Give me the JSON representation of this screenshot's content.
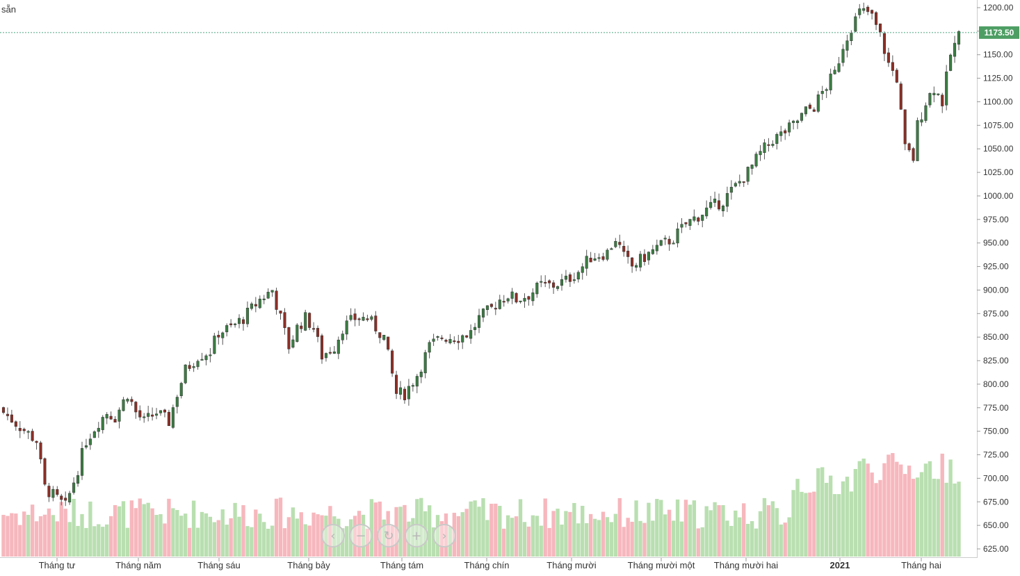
{
  "header": {
    "label": "sẵn"
  },
  "price_tag": "1173.50",
  "colors": {
    "up_body": "#3b7d43",
    "down_body": "#8c2f26",
    "up_volume": "#b9dfb0",
    "down_volume": "#f6b7bd",
    "current_price_line": "#4aa37d",
    "axis": "#999999",
    "text": "#333333"
  },
  "nav": [
    {
      "icon": "chevron-left-icon",
      "glyph": "‹"
    },
    {
      "icon": "minus-icon",
      "glyph": "−"
    },
    {
      "icon": "reset-icon",
      "glyph": "↻"
    },
    {
      "icon": "plus-icon",
      "glyph": "+"
    },
    {
      "icon": "chevron-right-icon",
      "glyph": "›"
    }
  ],
  "chart_data": {
    "type": "candlestick",
    "title": "",
    "x_ticks": [
      "Tháng tư",
      "Tháng năm",
      "Tháng sáu",
      "Tháng bảy",
      "Tháng tám",
      "Tháng chín",
      "Tháng mười",
      "Tháng mười một",
      "Tháng mười hai",
      "2021",
      "Tháng hai"
    ],
    "y_ticks": [
      "1200.00",
      "1175.00",
      "1150.00",
      "1125.00",
      "1100.00",
      "1075.00",
      "1050.00",
      "1025.00",
      "1000.00",
      "975.00",
      "950.00",
      "925.00",
      "900.00",
      "875.00",
      "850.00",
      "825.00",
      "800.00",
      "775.00",
      "750.00",
      "725.00",
      "700.00",
      "675.00",
      "650.00",
      "625.00"
    ],
    "ylim": [
      620,
      1210
    ],
    "current_price": 1173.5,
    "price_path": [
      [
        0,
        770
      ],
      [
        8,
        740
      ],
      [
        10,
        690
      ],
      [
        15,
        670
      ],
      [
        18,
        710
      ],
      [
        20,
        740
      ],
      [
        23,
        760
      ],
      [
        25,
        770
      ],
      [
        27,
        765
      ],
      [
        30,
        790
      ],
      [
        32,
        770
      ],
      [
        34,
        760
      ],
      [
        37,
        770
      ],
      [
        40,
        760
      ],
      [
        42,
        790
      ],
      [
        44,
        815
      ],
      [
        47,
        830
      ],
      [
        50,
        835
      ],
      [
        52,
        855
      ],
      [
        55,
        860
      ],
      [
        58,
        870
      ],
      [
        62,
        890
      ],
      [
        65,
        900
      ],
      [
        67,
        870
      ],
      [
        69,
        840
      ],
      [
        71,
        860
      ],
      [
        73,
        870
      ],
      [
        75,
        860
      ],
      [
        77,
        830
      ],
      [
        80,
        840
      ],
      [
        82,
        860
      ],
      [
        85,
        870
      ],
      [
        88,
        870
      ],
      [
        90,
        860
      ],
      [
        92,
        850
      ],
      [
        95,
        790
      ],
      [
        97,
        790
      ],
      [
        100,
        810
      ],
      [
        103,
        840
      ],
      [
        106,
        850
      ],
      [
        110,
        850
      ],
      [
        113,
        855
      ],
      [
        115,
        870
      ],
      [
        118,
        880
      ],
      [
        120,
        890
      ],
      [
        122,
        895
      ],
      [
        124,
        890
      ],
      [
        127,
        895
      ],
      [
        130,
        905
      ],
      [
        133,
        905
      ],
      [
        136,
        910
      ],
      [
        139,
        920
      ],
      [
        142,
        935
      ],
      [
        146,
        940
      ],
      [
        148,
        955
      ],
      [
        150,
        935
      ],
      [
        152,
        925
      ],
      [
        155,
        935
      ],
      [
        158,
        945
      ],
      [
        162,
        955
      ],
      [
        165,
        970
      ],
      [
        170,
        985
      ],
      [
        174,
        995
      ],
      [
        177,
        1010
      ],
      [
        180,
        1025
      ],
      [
        183,
        1045
      ],
      [
        186,
        1060
      ],
      [
        188,
        1065
      ],
      [
        191,
        1075
      ],
      [
        194,
        1090
      ],
      [
        196,
        1095
      ],
      [
        198,
        1110
      ],
      [
        201,
        1130
      ],
      [
        203,
        1160
      ],
      [
        205,
        1180
      ],
      [
        207,
        1195
      ],
      [
        209,
        1195
      ],
      [
        210,
        1190
      ],
      [
        212,
        1170
      ],
      [
        214,
        1140
      ],
      [
        216,
        1125
      ],
      [
        218,
        1050
      ],
      [
        220,
        1040
      ],
      [
        221,
        1075
      ],
      [
        223,
        1100
      ],
      [
        225,
        1115
      ],
      [
        227,
        1100
      ],
      [
        229,
        1150
      ],
      [
        231,
        1170
      ]
    ],
    "volume_note": "Volume bars shown at the bottom, colored by candle direction"
  }
}
